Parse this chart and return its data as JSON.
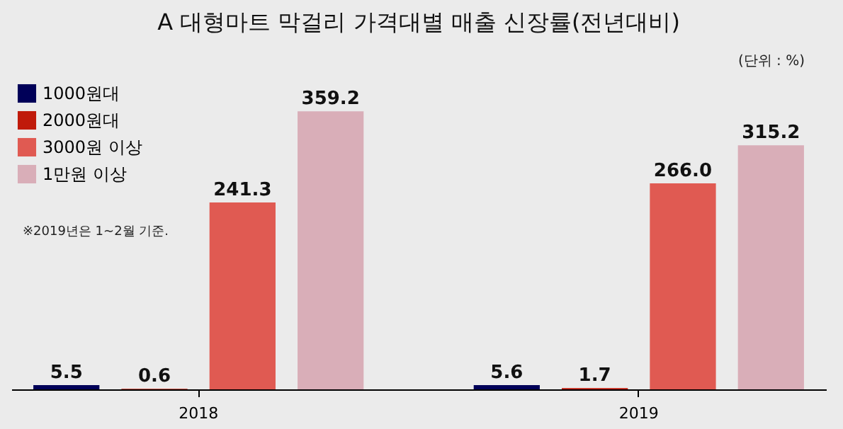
{
  "chart_data": {
    "type": "bar",
    "title": "A 대형마트 막걸리 가격대별 매출 신장률(전년대비)",
    "categories": [
      "2018",
      "2019"
    ],
    "series": [
      {
        "name": "1000원대",
        "color": "#000058",
        "values": [
          5.5,
          5.6
        ],
        "value_labels": [
          "5.5",
          "5.6"
        ]
      },
      {
        "name": "2000원대",
        "color": "#c01a0a",
        "values": [
          0.6,
          1.7
        ],
        "value_labels": [
          "0.6",
          "1.7"
        ]
      },
      {
        "name": "3000원 이상",
        "color": "#e05a52",
        "values": [
          241.3,
          266.0
        ],
        "value_labels": [
          "241.3",
          "266.0"
        ]
      },
      {
        "name": "1만원 이상",
        "color": "#d9aeb8",
        "values": [
          359.2,
          315.2
        ],
        "value_labels": [
          "359.2",
          "315.2"
        ]
      }
    ],
    "legend": "top left",
    "annotations": [
      "(단위 : %)",
      "※2019년은 1~2월 기준."
    ]
  }
}
